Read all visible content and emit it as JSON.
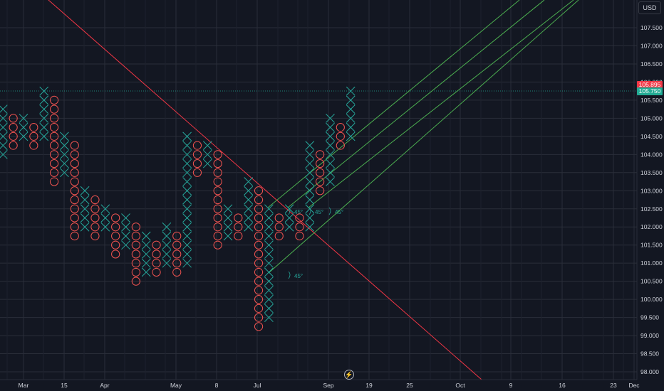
{
  "currency": "USD",
  "time_button_icon": "lightning-icon",
  "price_badges": {
    "last": "105.895",
    "reference": "105.750"
  },
  "colors": {
    "background": "#131722",
    "grid": "#2a2e39",
    "x_mark": "#26a69a",
    "o_mark": "#ef5350",
    "downtrend_line": "#f23645",
    "uptrend_lines": "#4caf50",
    "angle_label": "#26a69a",
    "axis_text": "#d1d4dc"
  },
  "chart_data": {
    "type": "point-and-figure",
    "box_size": 0.25,
    "y_axis": {
      "ylim": [
        97.92,
        108.42
      ],
      "ticks": [
        "98.000",
        "98.500",
        "99.000",
        "99.500",
        "100.000",
        "100.500",
        "101.000",
        "101.500",
        "102.000",
        "102.500",
        "103.000",
        "103.500",
        "104.000",
        "104.500",
        "105.000",
        "105.500",
        "106.000",
        "106.500",
        "107.000",
        "107.500"
      ]
    },
    "x_axis": {
      "ticks": [
        "Mar",
        "15",
        "Apr",
        "May",
        "8",
        "Jul",
        "Sep",
        "19",
        "25",
        "Oct",
        "9",
        "16",
        "23",
        "Dec"
      ]
    },
    "columns": [
      {
        "type": "X",
        "low": 104.0,
        "high": 105.25
      },
      {
        "type": "O",
        "low": 104.25,
        "high": 105.0
      },
      {
        "type": "X",
        "low": 104.5,
        "high": 105.0
      },
      {
        "type": "O",
        "low": 104.25,
        "high": 104.75
      },
      {
        "type": "X",
        "low": 104.5,
        "high": 105.75
      },
      {
        "type": "O",
        "low": 103.25,
        "high": 105.5
      },
      {
        "type": "X",
        "low": 103.5,
        "high": 104.5
      },
      {
        "type": "O",
        "low": 101.75,
        "high": 104.25
      },
      {
        "type": "X",
        "low": 102.0,
        "high": 103.0
      },
      {
        "type": "O",
        "low": 101.75,
        "high": 102.75
      },
      {
        "type": "X",
        "low": 102.0,
        "high": 102.5
      },
      {
        "type": "O",
        "low": 101.25,
        "high": 102.25
      },
      {
        "type": "X",
        "low": 101.5,
        "high": 102.25
      },
      {
        "type": "O",
        "low": 100.5,
        "high": 102.0
      },
      {
        "type": "X",
        "low": 100.75,
        "high": 101.75
      },
      {
        "type": "O",
        "low": 100.75,
        "high": 101.5
      },
      {
        "type": "X",
        "low": 101.0,
        "high": 102.0
      },
      {
        "type": "O",
        "low": 100.75,
        "high": 101.75
      },
      {
        "type": "X",
        "low": 101.0,
        "high": 104.5
      },
      {
        "type": "O",
        "low": 103.5,
        "high": 104.25
      },
      {
        "type": "X",
        "low": 103.75,
        "high": 104.25
      },
      {
        "type": "O",
        "low": 101.5,
        "high": 104.0
      },
      {
        "type": "X",
        "low": 101.75,
        "high": 102.5
      },
      {
        "type": "O",
        "low": 101.75,
        "high": 102.25
      },
      {
        "type": "X",
        "low": 102.0,
        "high": 103.25
      },
      {
        "type": "O",
        "low": 99.25,
        "high": 103.0
      },
      {
        "type": "X",
        "low": 99.5,
        "high": 102.5
      },
      {
        "type": "O",
        "low": 101.75,
        "high": 102.25
      },
      {
        "type": "X",
        "low": 102.0,
        "high": 102.5
      },
      {
        "type": "O",
        "low": 101.75,
        "high": 102.25
      },
      {
        "type": "X",
        "low": 102.0,
        "high": 104.25
      },
      {
        "type": "O",
        "low": 103.0,
        "high": 104.0
      },
      {
        "type": "X",
        "low": 103.25,
        "high": 105.0
      },
      {
        "type": "O",
        "low": 104.25,
        "high": 104.75
      },
      {
        "type": "X",
        "low": 104.5,
        "high": 105.75
      }
    ],
    "trend_lines": [
      {
        "kind": "downtrend",
        "color": "#f23645"
      },
      {
        "kind": "uptrend",
        "angle_label": "45°"
      },
      {
        "kind": "uptrend",
        "angle_label": "45°"
      },
      {
        "kind": "uptrend",
        "angle_label": "45°"
      },
      {
        "kind": "uptrend",
        "angle_label": "45°"
      }
    ]
  }
}
